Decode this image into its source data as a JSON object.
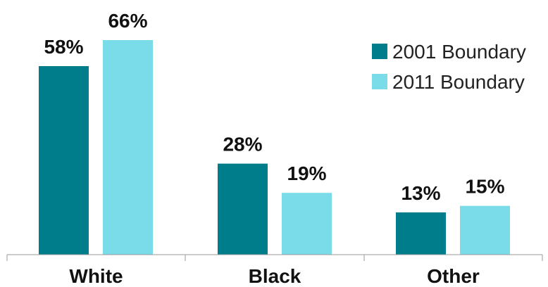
{
  "chart_data": {
    "type": "bar",
    "title": "",
    "xlabel": "",
    "ylabel": "",
    "categories": [
      "White",
      "Black",
      "Other"
    ],
    "series": [
      {
        "name": "2001 Boundary",
        "values": [
          58,
          28,
          13
        ],
        "labels": [
          "58%",
          "28%",
          "13%"
        ],
        "color": "#007d8a"
      },
      {
        "name": "2011 Boundary",
        "values": [
          66,
          19,
          15
        ],
        "labels": [
          "66%",
          "19%",
          "15%"
        ],
        "color": "#7adce8"
      }
    ],
    "ylim": [
      0,
      66
    ],
    "grid": false,
    "legend_position": "top-right"
  }
}
